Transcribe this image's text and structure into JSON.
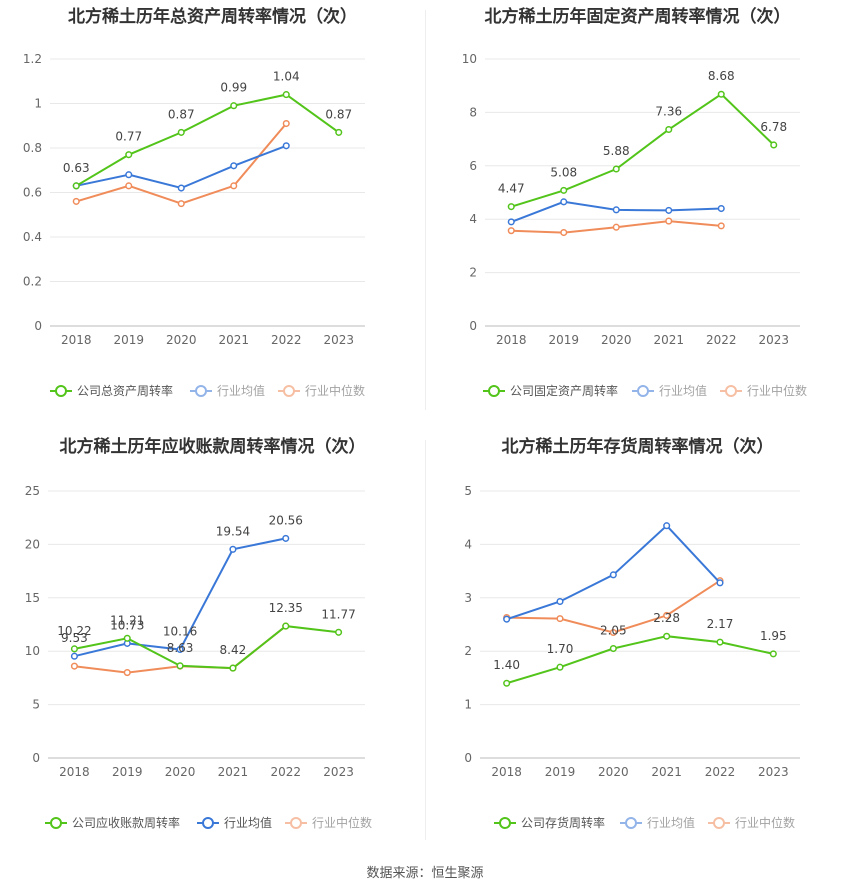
{
  "footer": "数据来源：恒生聚源",
  "chart_data": [
    {
      "type": "line",
      "title": "北方稀土历年总资产周转率情况（次）",
      "categories": [
        "2018",
        "2019",
        "2020",
        "2021",
        "2022",
        "2023"
      ],
      "ylim": [
        0,
        1.2
      ],
      "yticks": [
        "0",
        "0.2",
        "0.4",
        "0.6",
        "0.8",
        "1",
        "1.2"
      ],
      "legend_position": "bottom",
      "series": [
        {
          "name": "公司总资产周转率",
          "color": "#52c41a",
          "values": [
            0.63,
            0.77,
            0.87,
            0.99,
            1.04,
            0.87
          ],
          "labels": [
            "0.63",
            "0.77",
            "0.87",
            "0.99",
            "1.04",
            "0.87"
          ],
          "legend_style": "bold"
        },
        {
          "name": "行业均值",
          "color": "#3a78d8",
          "values": [
            0.63,
            0.68,
            0.62,
            0.72,
            0.81,
            null
          ],
          "legend_style": "light"
        },
        {
          "name": "行业中位数",
          "color": "#f08c5a",
          "values": [
            0.56,
            0.63,
            0.55,
            0.63,
            0.91,
            null
          ],
          "legend_style": "light"
        }
      ]
    },
    {
      "type": "line",
      "title": "北方稀土历年固定资产周转率情况（次）",
      "categories": [
        "2018",
        "2019",
        "2020",
        "2021",
        "2022",
        "2023"
      ],
      "ylim": [
        0,
        10
      ],
      "yticks": [
        "0",
        "2",
        "4",
        "6",
        "8",
        "10"
      ],
      "legend_position": "bottom",
      "series": [
        {
          "name": "公司固定资产周转率",
          "color": "#52c41a",
          "values": [
            4.47,
            5.08,
            5.88,
            7.36,
            8.68,
            6.78
          ],
          "labels": [
            "4.47",
            "5.08",
            "5.88",
            "7.36",
            "8.68",
            "6.78"
          ],
          "legend_style": "bold"
        },
        {
          "name": "行业均值",
          "color": "#3a78d8",
          "values": [
            3.9,
            4.65,
            4.35,
            4.33,
            4.4,
            null
          ],
          "legend_style": "light"
        },
        {
          "name": "行业中位数",
          "color": "#f08c5a",
          "values": [
            3.57,
            3.5,
            3.7,
            3.93,
            3.75,
            null
          ],
          "legend_style": "light"
        }
      ]
    },
    {
      "type": "line",
      "title": "北方稀土历年应收账款周转率情况（次）",
      "categories": [
        "2018",
        "2019",
        "2020",
        "2021",
        "2022",
        "2023"
      ],
      "ylim": [
        0,
        25
      ],
      "yticks": [
        "0",
        "5",
        "10",
        "15",
        "20",
        "25"
      ],
      "legend_position": "bottom",
      "series": [
        {
          "name": "公司应收账款周转率",
          "color": "#52c41a",
          "values": [
            10.22,
            11.21,
            8.63,
            8.42,
            12.35,
            11.77
          ],
          "labels": [
            "10.22",
            "11.21",
            "8.63",
            "8.42",
            "12.35",
            "11.77"
          ],
          "legend_style": "bold"
        },
        {
          "name": "行业均值",
          "color": "#3a78d8",
          "values": [
            9.53,
            10.73,
            10.16,
            19.54,
            20.56,
            null
          ],
          "labels": [
            "9.53",
            "10.73",
            "10.16",
            "19.54",
            "20.56",
            null
          ],
          "legend_style": "bold"
        },
        {
          "name": "行业中位数",
          "color": "#f08c5a",
          "values": [
            8.6,
            8.0,
            8.6,
            8.42,
            12.35,
            null
          ],
          "legend_style": "light"
        }
      ]
    },
    {
      "type": "line",
      "title": "北方稀土历年存货周转率情况（次）",
      "categories": [
        "2018",
        "2019",
        "2020",
        "2021",
        "2022",
        "2023"
      ],
      "ylim": [
        0,
        5
      ],
      "yticks": [
        "0",
        "1",
        "2",
        "3",
        "4",
        "5"
      ],
      "legend_position": "bottom",
      "series": [
        {
          "name": "公司存货周转率",
          "color": "#52c41a",
          "values": [
            1.4,
            1.7,
            2.05,
            2.28,
            2.17,
            1.95
          ],
          "labels": [
            "1.40",
            "1.70",
            "2.05",
            "2.28",
            "2.17",
            "1.95"
          ],
          "legend_style": "bold"
        },
        {
          "name": "行业均值",
          "color": "#3a78d8",
          "values": [
            2.6,
            2.93,
            3.43,
            4.35,
            3.28,
            null
          ],
          "legend_style": "light"
        },
        {
          "name": "行业中位数",
          "color": "#f08c5a",
          "values": [
            2.63,
            2.61,
            2.35,
            2.67,
            3.32,
            null
          ],
          "legend_style": "light"
        }
      ]
    }
  ]
}
